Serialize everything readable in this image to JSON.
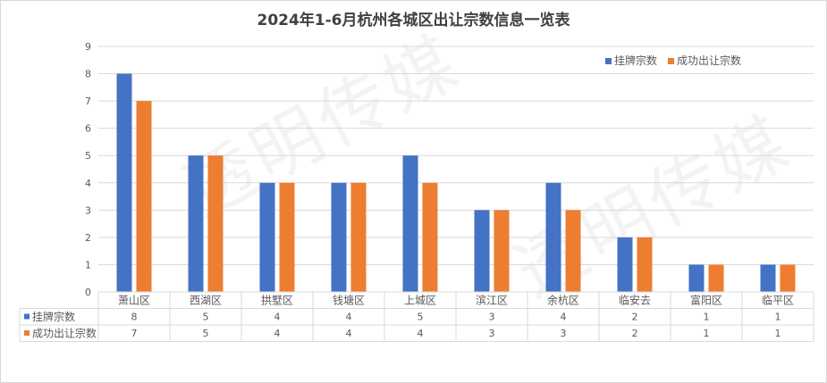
{
  "title": "2024年1-6月杭州各城区出让宗数信息一览表",
  "watermark": "透明传媒",
  "colors": {
    "series1": "#4472C4",
    "series2": "#ED7D31",
    "grid": "#d9d9d9",
    "text": "#595959"
  },
  "chart_data": {
    "type": "bar",
    "title": "2024年1-6月杭州各城区出让宗数信息一览表",
    "categories": [
      "萧山区",
      "西湖区",
      "拱墅区",
      "钱塘区",
      "上城区",
      "滨江区",
      "余杭区",
      "临安去",
      "富阳区",
      "临平区"
    ],
    "series": [
      {
        "name": "挂牌宗数",
        "values": [
          8,
          5,
          4,
          4,
          5,
          3,
          4,
          2,
          1,
          1
        ]
      },
      {
        "name": "成功出让宗数",
        "values": [
          7,
          5,
          4,
          4,
          4,
          3,
          3,
          2,
          1,
          1
        ]
      }
    ],
    "ylim": [
      0,
      9
    ],
    "yticks": [
      0,
      1,
      2,
      3,
      4,
      5,
      6,
      7,
      8,
      9
    ],
    "grid": true,
    "legend": "top-right",
    "data_table": true
  }
}
